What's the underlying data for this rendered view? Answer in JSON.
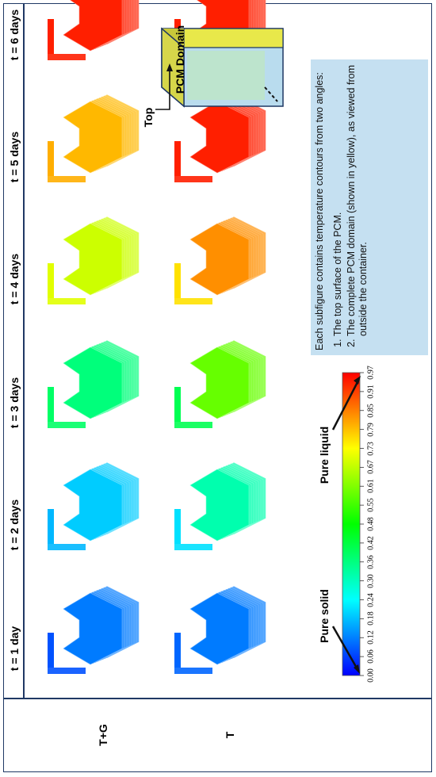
{
  "column_headers": [
    "t = 1 day",
    "t = 2 days",
    "t = 3 days",
    "t = 4 days",
    "t = 5 days",
    "t = 6 days"
  ],
  "row_labels": [
    "T+G",
    "T"
  ],
  "colorbar": {
    "ticks": [
      "0.00",
      "0.06",
      "0.12",
      "0.18",
      "0.24",
      "0.30",
      "0.36",
      "0.42",
      "0.48",
      "0.55",
      "0.61",
      "0.67",
      "0.73",
      "0.79",
      "0.85",
      "0.91",
      "0.97"
    ],
    "pure_solid_label": "Pure solid",
    "pure_liquid_label": "Pure liquid",
    "colors": [
      "#0000ff",
      "#0080ff",
      "#00ffff",
      "#00ff80",
      "#00ff00",
      "#80ff00",
      "#ffff00",
      "#ff8000",
      "#ff0000"
    ]
  },
  "contours": {
    "tg": [
      0.12,
      0.2,
      0.38,
      0.7,
      0.82,
      0.97
    ],
    "t": [
      0.12,
      0.33,
      0.6,
      0.86,
      0.97,
      0.97
    ],
    "tg_top": [
      0.08,
      0.18,
      0.4,
      0.72,
      0.83,
      0.97
    ],
    "t_top": [
      0.1,
      0.22,
      0.42,
      0.78,
      0.97,
      0.97
    ]
  },
  "legend_box": {
    "domain_label": "PCM Domain",
    "top_label": "Top",
    "domain_color": "#e8e84a",
    "inner_color": "#b9dcee"
  },
  "note": {
    "intro": "Each subfigure contains temperature contours from two angles:",
    "items": [
      "The top surface of the PCM.",
      "The complete PCM domain (shown in yellow), as viewed from outside the container."
    ],
    "background": "#c5e0f1"
  }
}
